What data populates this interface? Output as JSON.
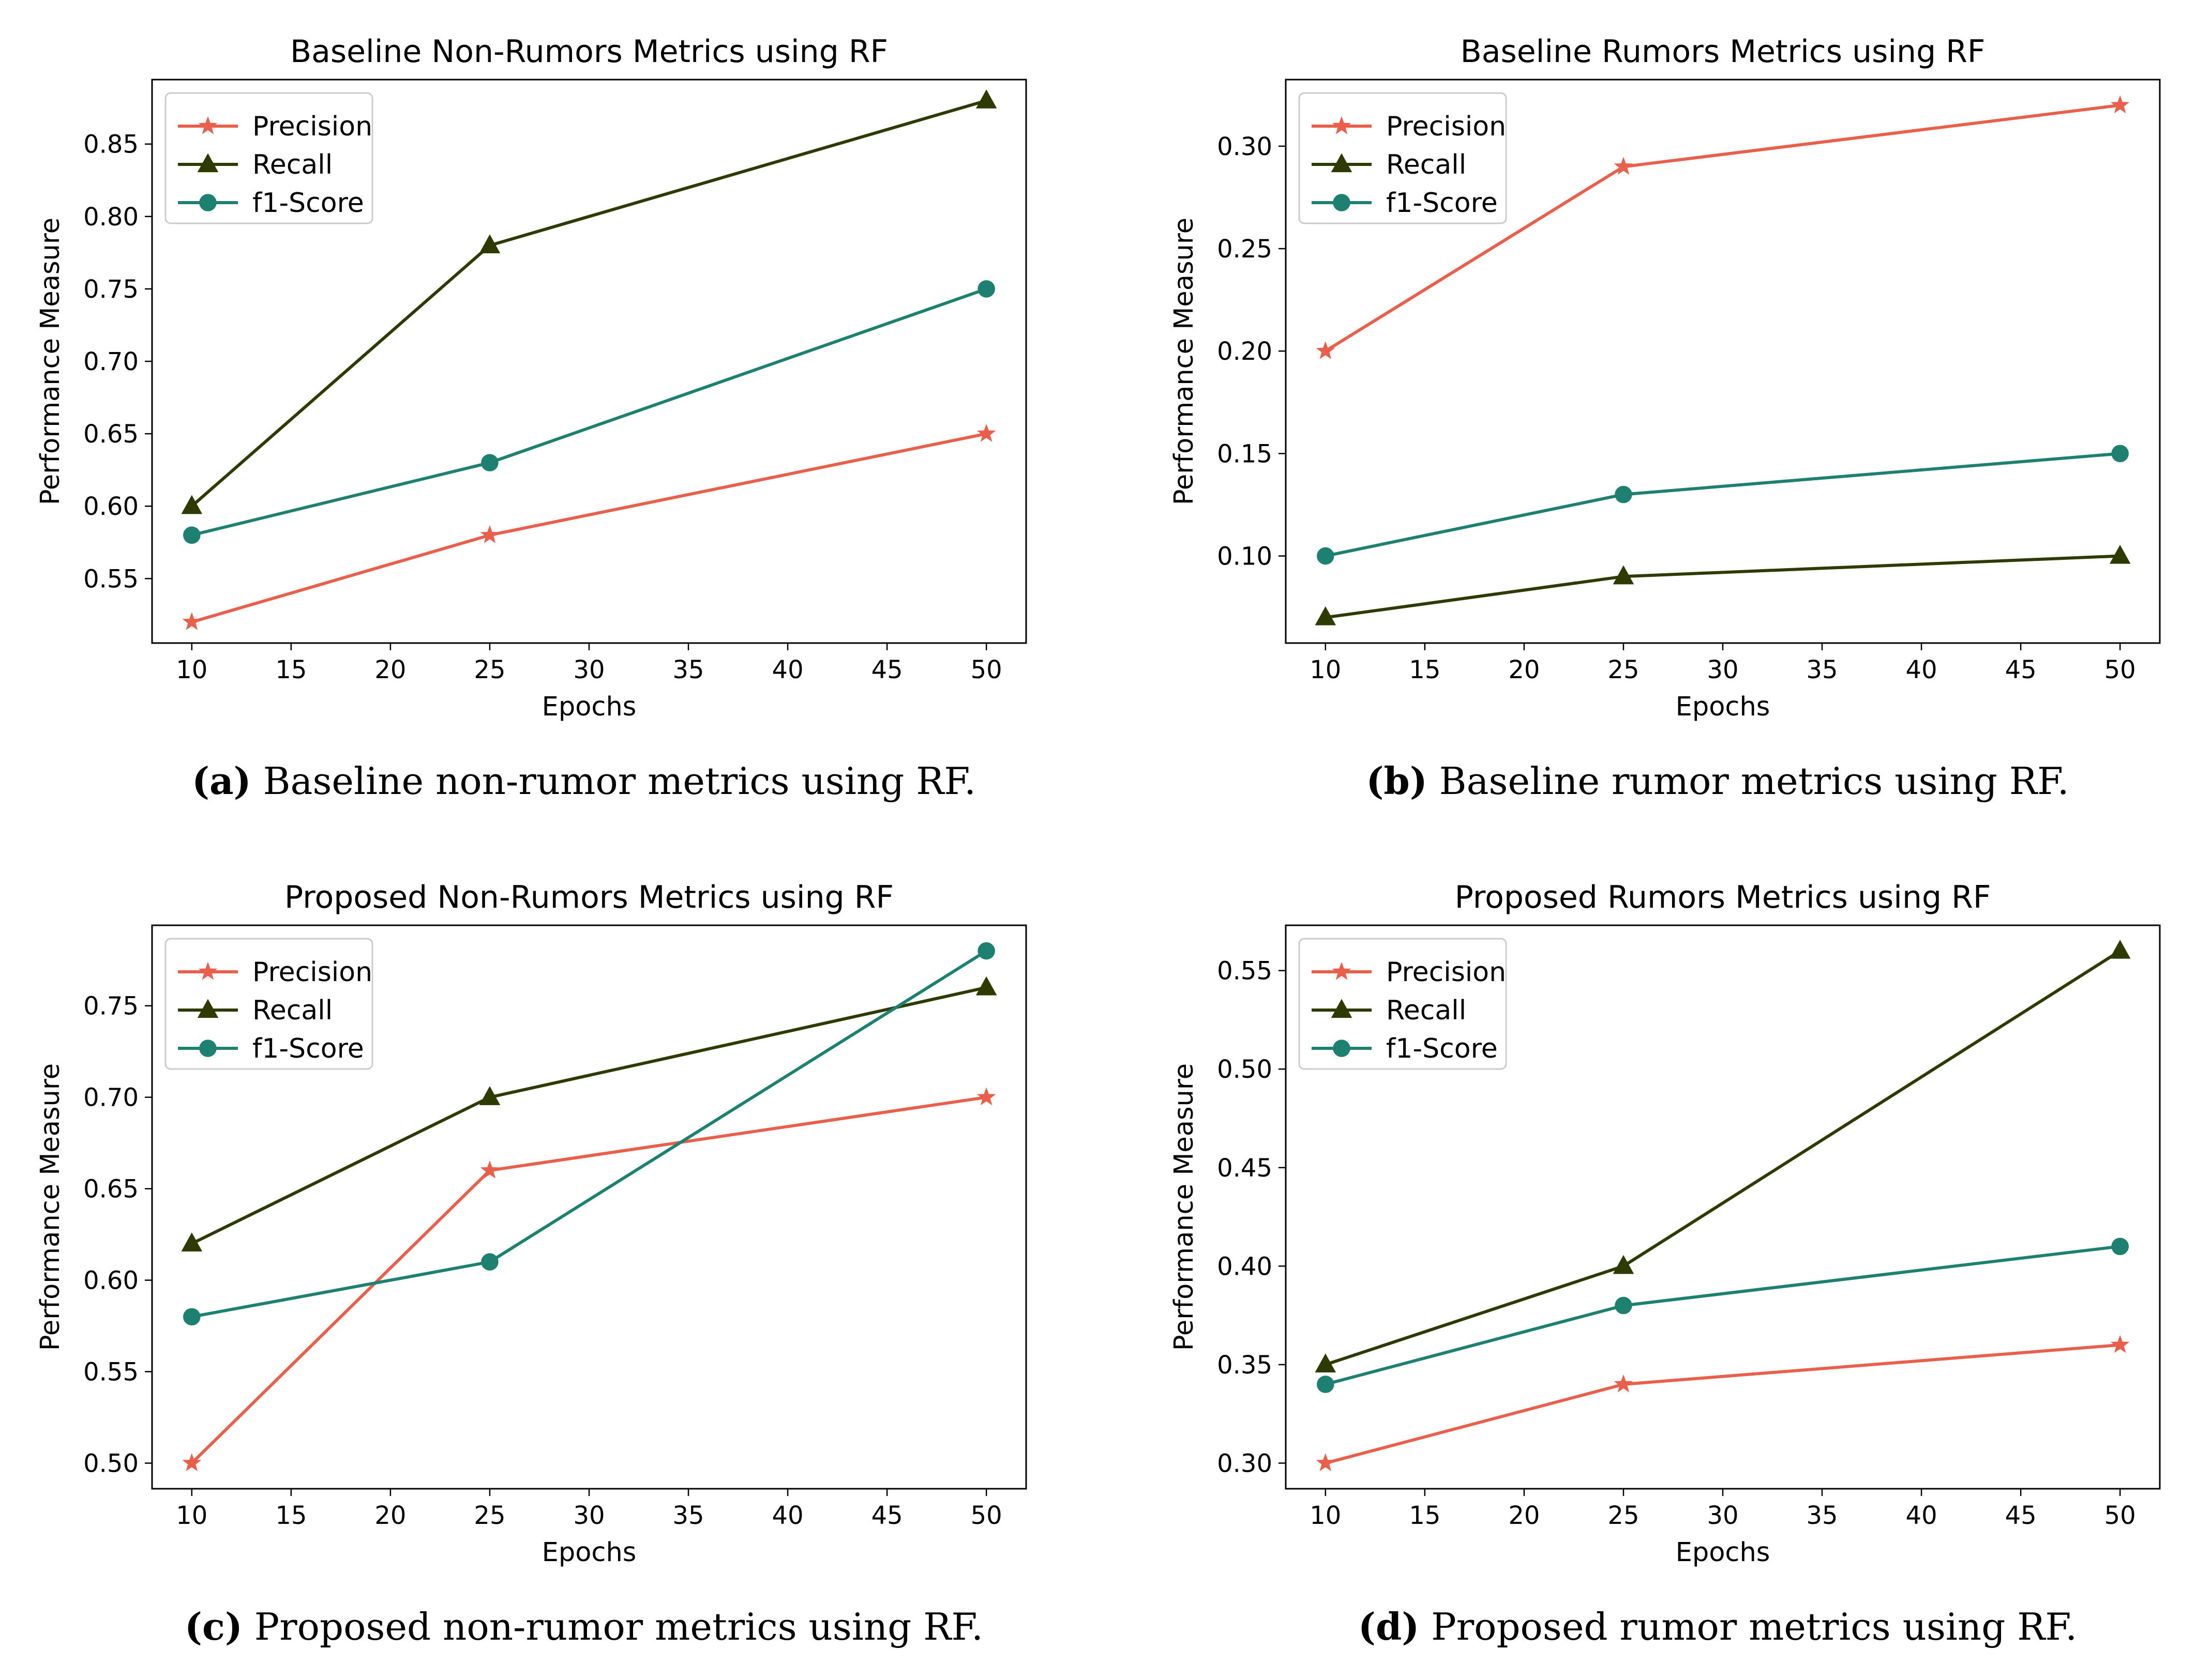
{
  "colors": {
    "precision": "#e8604c",
    "recall": "#2d3a00",
    "f1": "#1e8070",
    "axis": "#000000",
    "legend_border": "#cccccc"
  },
  "chart_data": [
    {
      "type": "line",
      "title": "Baseline Non-Rumors Metrics using RF",
      "xlabel": "Epochs",
      "ylabel": "Performance Measure",
      "x": [
        10,
        25,
        50
      ],
      "xlim": [
        8,
        52
      ],
      "xticks": [
        "10",
        "15",
        "20",
        "25",
        "30",
        "35",
        "40",
        "45",
        "50"
      ],
      "ylim": [
        0.5055,
        0.8945
      ],
      "yticks": [
        "0.55",
        "0.60",
        "0.65",
        "0.70",
        "0.75",
        "0.80",
        "0.85"
      ],
      "legend_position": "top-left",
      "series": [
        {
          "name": "Precision",
          "marker": "star",
          "values": [
            0.52,
            0.58,
            0.65
          ]
        },
        {
          "name": "Recall",
          "marker": "triangle",
          "values": [
            0.6,
            0.78,
            0.88
          ]
        },
        {
          "name": "f1-Score",
          "marker": "circle",
          "values": [
            0.58,
            0.63,
            0.75
          ]
        }
      ],
      "caption_letter": "(a)",
      "caption_text": " Baseline non-rumor metrics using RF."
    },
    {
      "type": "line",
      "title": "Baseline Rumors Metrics using RF",
      "xlabel": "Epochs",
      "ylabel": "Performance Measure",
      "x": [
        10,
        25,
        50
      ],
      "xlim": [
        8,
        52
      ],
      "xticks": [
        "10",
        "15",
        "20",
        "25",
        "30",
        "35",
        "40",
        "45",
        "50"
      ],
      "ylim": [
        0.0575,
        0.3325
      ],
      "yticks": [
        "0.10",
        "0.15",
        "0.20",
        "0.25",
        "0.30"
      ],
      "legend_position": "top-left",
      "series": [
        {
          "name": "Precision",
          "marker": "star",
          "values": [
            0.2,
            0.29,
            0.32
          ]
        },
        {
          "name": "Recall",
          "marker": "triangle",
          "values": [
            0.07,
            0.09,
            0.1
          ]
        },
        {
          "name": "f1-Score",
          "marker": "circle",
          "values": [
            0.1,
            0.13,
            0.15
          ]
        }
      ],
      "caption_letter": "(b)",
      "caption_text": " Baseline rumor metrics using RF."
    },
    {
      "type": "line",
      "title": "Proposed Non-Rumors Metrics using RF",
      "xlabel": "Epochs",
      "ylabel": "Performance Measure",
      "x": [
        10,
        25,
        50
      ],
      "xlim": [
        8,
        52
      ],
      "xticks": [
        "10",
        "15",
        "20",
        "25",
        "30",
        "35",
        "40",
        "45",
        "50"
      ],
      "ylim": [
        0.486,
        0.794
      ],
      "yticks": [
        "0.50",
        "0.55",
        "0.60",
        "0.65",
        "0.70",
        "0.75"
      ],
      "legend_position": "top-left",
      "series": [
        {
          "name": "Precision",
          "marker": "star",
          "values": [
            0.5,
            0.66,
            0.7
          ]
        },
        {
          "name": "Recall",
          "marker": "triangle",
          "values": [
            0.62,
            0.7,
            0.76
          ]
        },
        {
          "name": "f1-Score",
          "marker": "circle",
          "values": [
            0.58,
            0.61,
            0.78
          ]
        }
      ],
      "caption_letter": "(c)",
      "caption_text": " Proposed non-rumor metrics using RF."
    },
    {
      "type": "line",
      "title": "Proposed Rumors Metrics using RF",
      "xlabel": "Epochs",
      "ylabel": "Performance Measure",
      "x": [
        10,
        25,
        50
      ],
      "xlim": [
        8,
        52
      ],
      "xticks": [
        "10",
        "15",
        "20",
        "25",
        "30",
        "35",
        "40",
        "45",
        "50"
      ],
      "ylim": [
        0.287,
        0.573
      ],
      "yticks": [
        "0.30",
        "0.35",
        "0.40",
        "0.45",
        "0.50",
        "0.55"
      ],
      "legend_position": "top-left",
      "series": [
        {
          "name": "Precision",
          "marker": "star",
          "values": [
            0.3,
            0.34,
            0.36
          ]
        },
        {
          "name": "Recall",
          "marker": "triangle",
          "values": [
            0.35,
            0.4,
            0.56
          ]
        },
        {
          "name": "f1-Score",
          "marker": "circle",
          "values": [
            0.34,
            0.38,
            0.41
          ]
        }
      ],
      "caption_letter": "(d)",
      "caption_text": " Proposed rumor metrics using RF."
    }
  ]
}
